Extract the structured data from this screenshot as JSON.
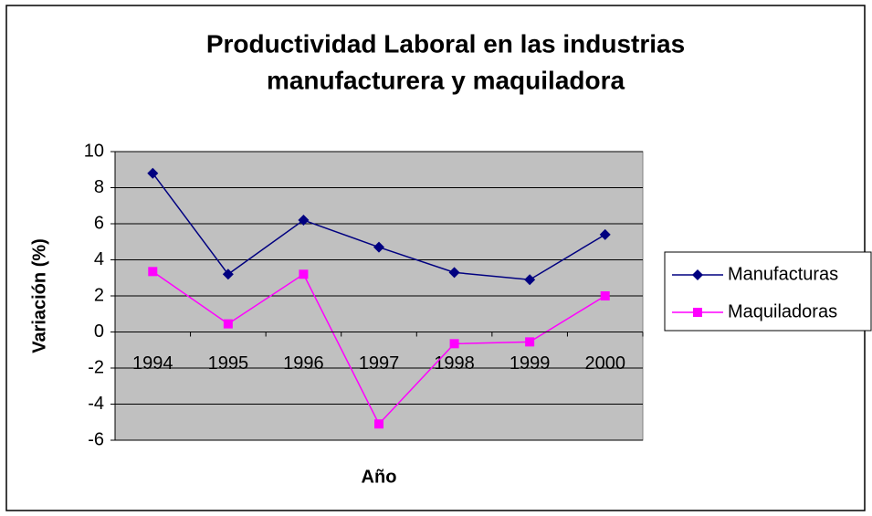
{
  "chart_data": {
    "type": "line",
    "title": [
      "Productividad Laboral en las industrias",
      "manufacturera y maquiladora"
    ],
    "x_label": "Año",
    "y_label": "Variación (%)",
    "categories": [
      "1994",
      "1995",
      "1996",
      "1997",
      "1998",
      "1999",
      "2000"
    ],
    "series": [
      {
        "name": "Manufacturas",
        "color": "#000080",
        "marker": "diamond",
        "values": [
          8.8,
          3.2,
          6.2,
          4.7,
          3.3,
          2.9,
          5.4
        ]
      },
      {
        "name": "Maquiladoras",
        "color": "#ff00ff",
        "marker": "square",
        "values": [
          3.35,
          0.45,
          3.2,
          -5.1,
          -0.65,
          -0.55,
          2.0
        ]
      }
    ],
    "ylim": [
      -6,
      10
    ],
    "yticks": [
      -6,
      -4,
      -2,
      0,
      2,
      4,
      6,
      8,
      10
    ],
    "grid": true,
    "legend": "right"
  }
}
